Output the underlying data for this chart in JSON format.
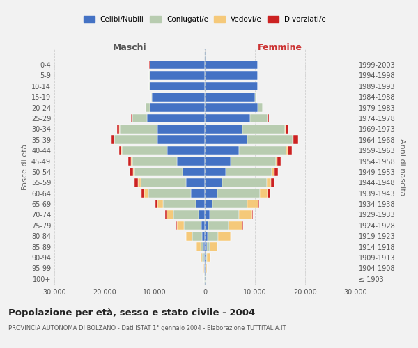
{
  "age_groups": [
    "100+",
    "95-99",
    "90-94",
    "85-89",
    "80-84",
    "75-79",
    "70-74",
    "65-69",
    "60-64",
    "55-59",
    "50-54",
    "45-49",
    "40-44",
    "35-39",
    "30-34",
    "25-29",
    "20-24",
    "15-19",
    "10-14",
    "5-9",
    "0-4"
  ],
  "birth_years": [
    "≤ 1903",
    "1904-1908",
    "1909-1913",
    "1914-1918",
    "1919-1923",
    "1924-1928",
    "1929-1933",
    "1934-1938",
    "1939-1943",
    "1944-1948",
    "1949-1953",
    "1954-1958",
    "1959-1963",
    "1964-1968",
    "1969-1973",
    "1974-1978",
    "1979-1983",
    "1984-1988",
    "1989-1993",
    "1994-1998",
    "1999-2003"
  ],
  "colors": {
    "celibe": "#4472C4",
    "coniugato": "#B8CCB0",
    "vedovo": "#F5C97A",
    "divorziato": "#CC2222"
  },
  "maschi": {
    "celibe": [
      50,
      100,
      200,
      300,
      500,
      700,
      1200,
      1800,
      2800,
      3800,
      4500,
      5500,
      7500,
      9500,
      9500,
      11500,
      11000,
      10500,
      11000,
      11000,
      11000
    ],
    "coniugato": [
      50,
      100,
      300,
      600,
      2000,
      3500,
      5000,
      6500,
      8500,
      9000,
      9500,
      9000,
      9000,
      8500,
      7500,
      3000,
      800,
      200,
      100,
      50,
      30
    ],
    "vedovo": [
      20,
      80,
      300,
      700,
      1200,
      1400,
      1500,
      1200,
      800,
      500,
      300,
      200,
      100,
      80,
      50,
      30,
      20,
      10,
      10,
      10,
      10
    ],
    "divorziato": [
      5,
      10,
      20,
      50,
      80,
      100,
      200,
      300,
      600,
      700,
      700,
      600,
      500,
      600,
      400,
      150,
      50,
      20,
      10,
      10,
      10
    ]
  },
  "femmine": {
    "celibe": [
      50,
      100,
      250,
      350,
      500,
      700,
      1000,
      1500,
      2500,
      3500,
      4200,
      5200,
      6800,
      8500,
      7500,
      9000,
      10500,
      10000,
      10500,
      10500,
      10500
    ],
    "coniugato": [
      30,
      80,
      200,
      600,
      2200,
      4000,
      5800,
      7000,
      8500,
      8800,
      9200,
      9000,
      9500,
      9000,
      8500,
      3500,
      1000,
      300,
      100,
      50,
      30
    ],
    "vedovo": [
      50,
      250,
      700,
      1500,
      2500,
      2800,
      2600,
      2200,
      1500,
      900,
      500,
      300,
      200,
      100,
      60,
      30,
      15,
      10,
      10,
      10,
      10
    ],
    "divorziato": [
      5,
      10,
      20,
      60,
      100,
      150,
      200,
      200,
      600,
      700,
      700,
      700,
      900,
      1000,
      600,
      200,
      50,
      20,
      10,
      10,
      10
    ]
  },
  "xlim": 30000,
  "xticks": [
    -30000,
    -20000,
    -10000,
    0,
    10000,
    20000,
    30000
  ],
  "xticklabels": [
    "30.000",
    "20.000",
    "10.000",
    "0",
    "10.000",
    "20.000",
    "30.000"
  ],
  "title_main": "Popolazione per età, sesso e stato civile - 2004",
  "title_sub": "PROVINCIA AUTONOMA DI BOLZANO - Dati ISTAT 1° gennaio 2004 - Elaborazione TUTTITALIA.IT",
  "ylabel_left": "Fasce di età",
  "ylabel_right": "Anni di nascita",
  "legend_labels": [
    "Celibi/Nubili",
    "Coniugati/e",
    "Vedovi/e",
    "Divorziati/e"
  ],
  "bg_color": "#F2F2F2",
  "grid_color": "#CCCCCC"
}
